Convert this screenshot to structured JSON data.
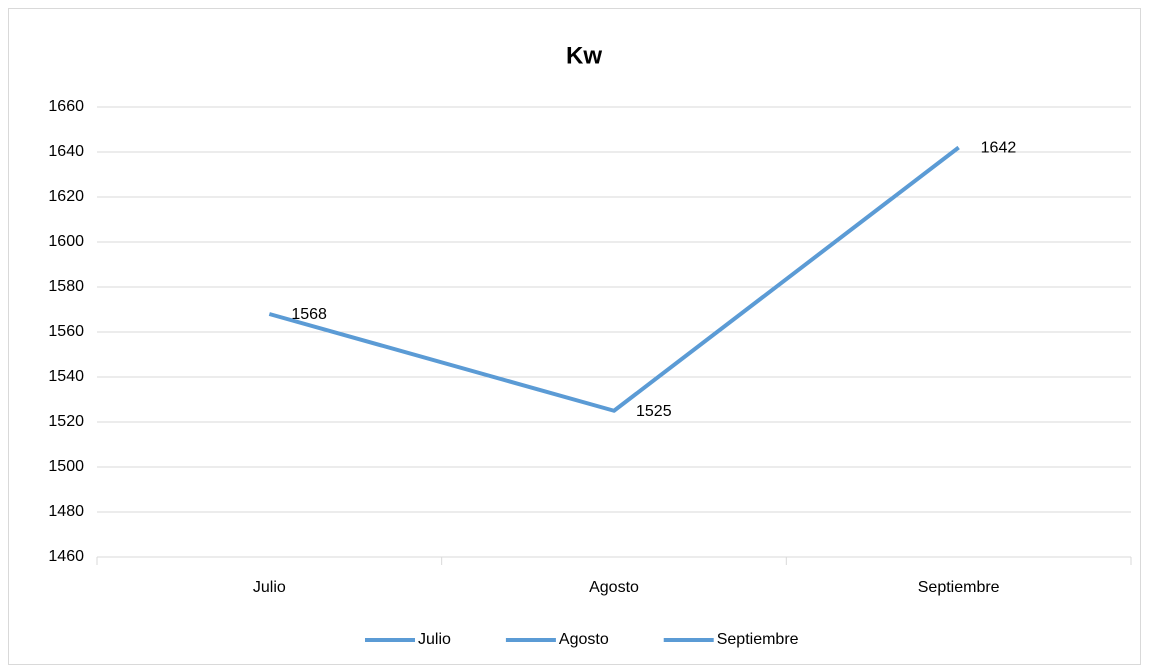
{
  "chart_data": {
    "type": "line",
    "title": "Kw",
    "categories": [
      "Julio",
      "Agosto",
      "Septiembre"
    ],
    "values": [
      1568,
      1525,
      1642
    ],
    "color": "#5b9bd5",
    "ylim": [
      1460,
      1660
    ],
    "yticks": [
      1460,
      1480,
      1500,
      1520,
      1540,
      1560,
      1580,
      1600,
      1620,
      1640,
      1660
    ],
    "grid": true,
    "legend": "bottom"
  }
}
